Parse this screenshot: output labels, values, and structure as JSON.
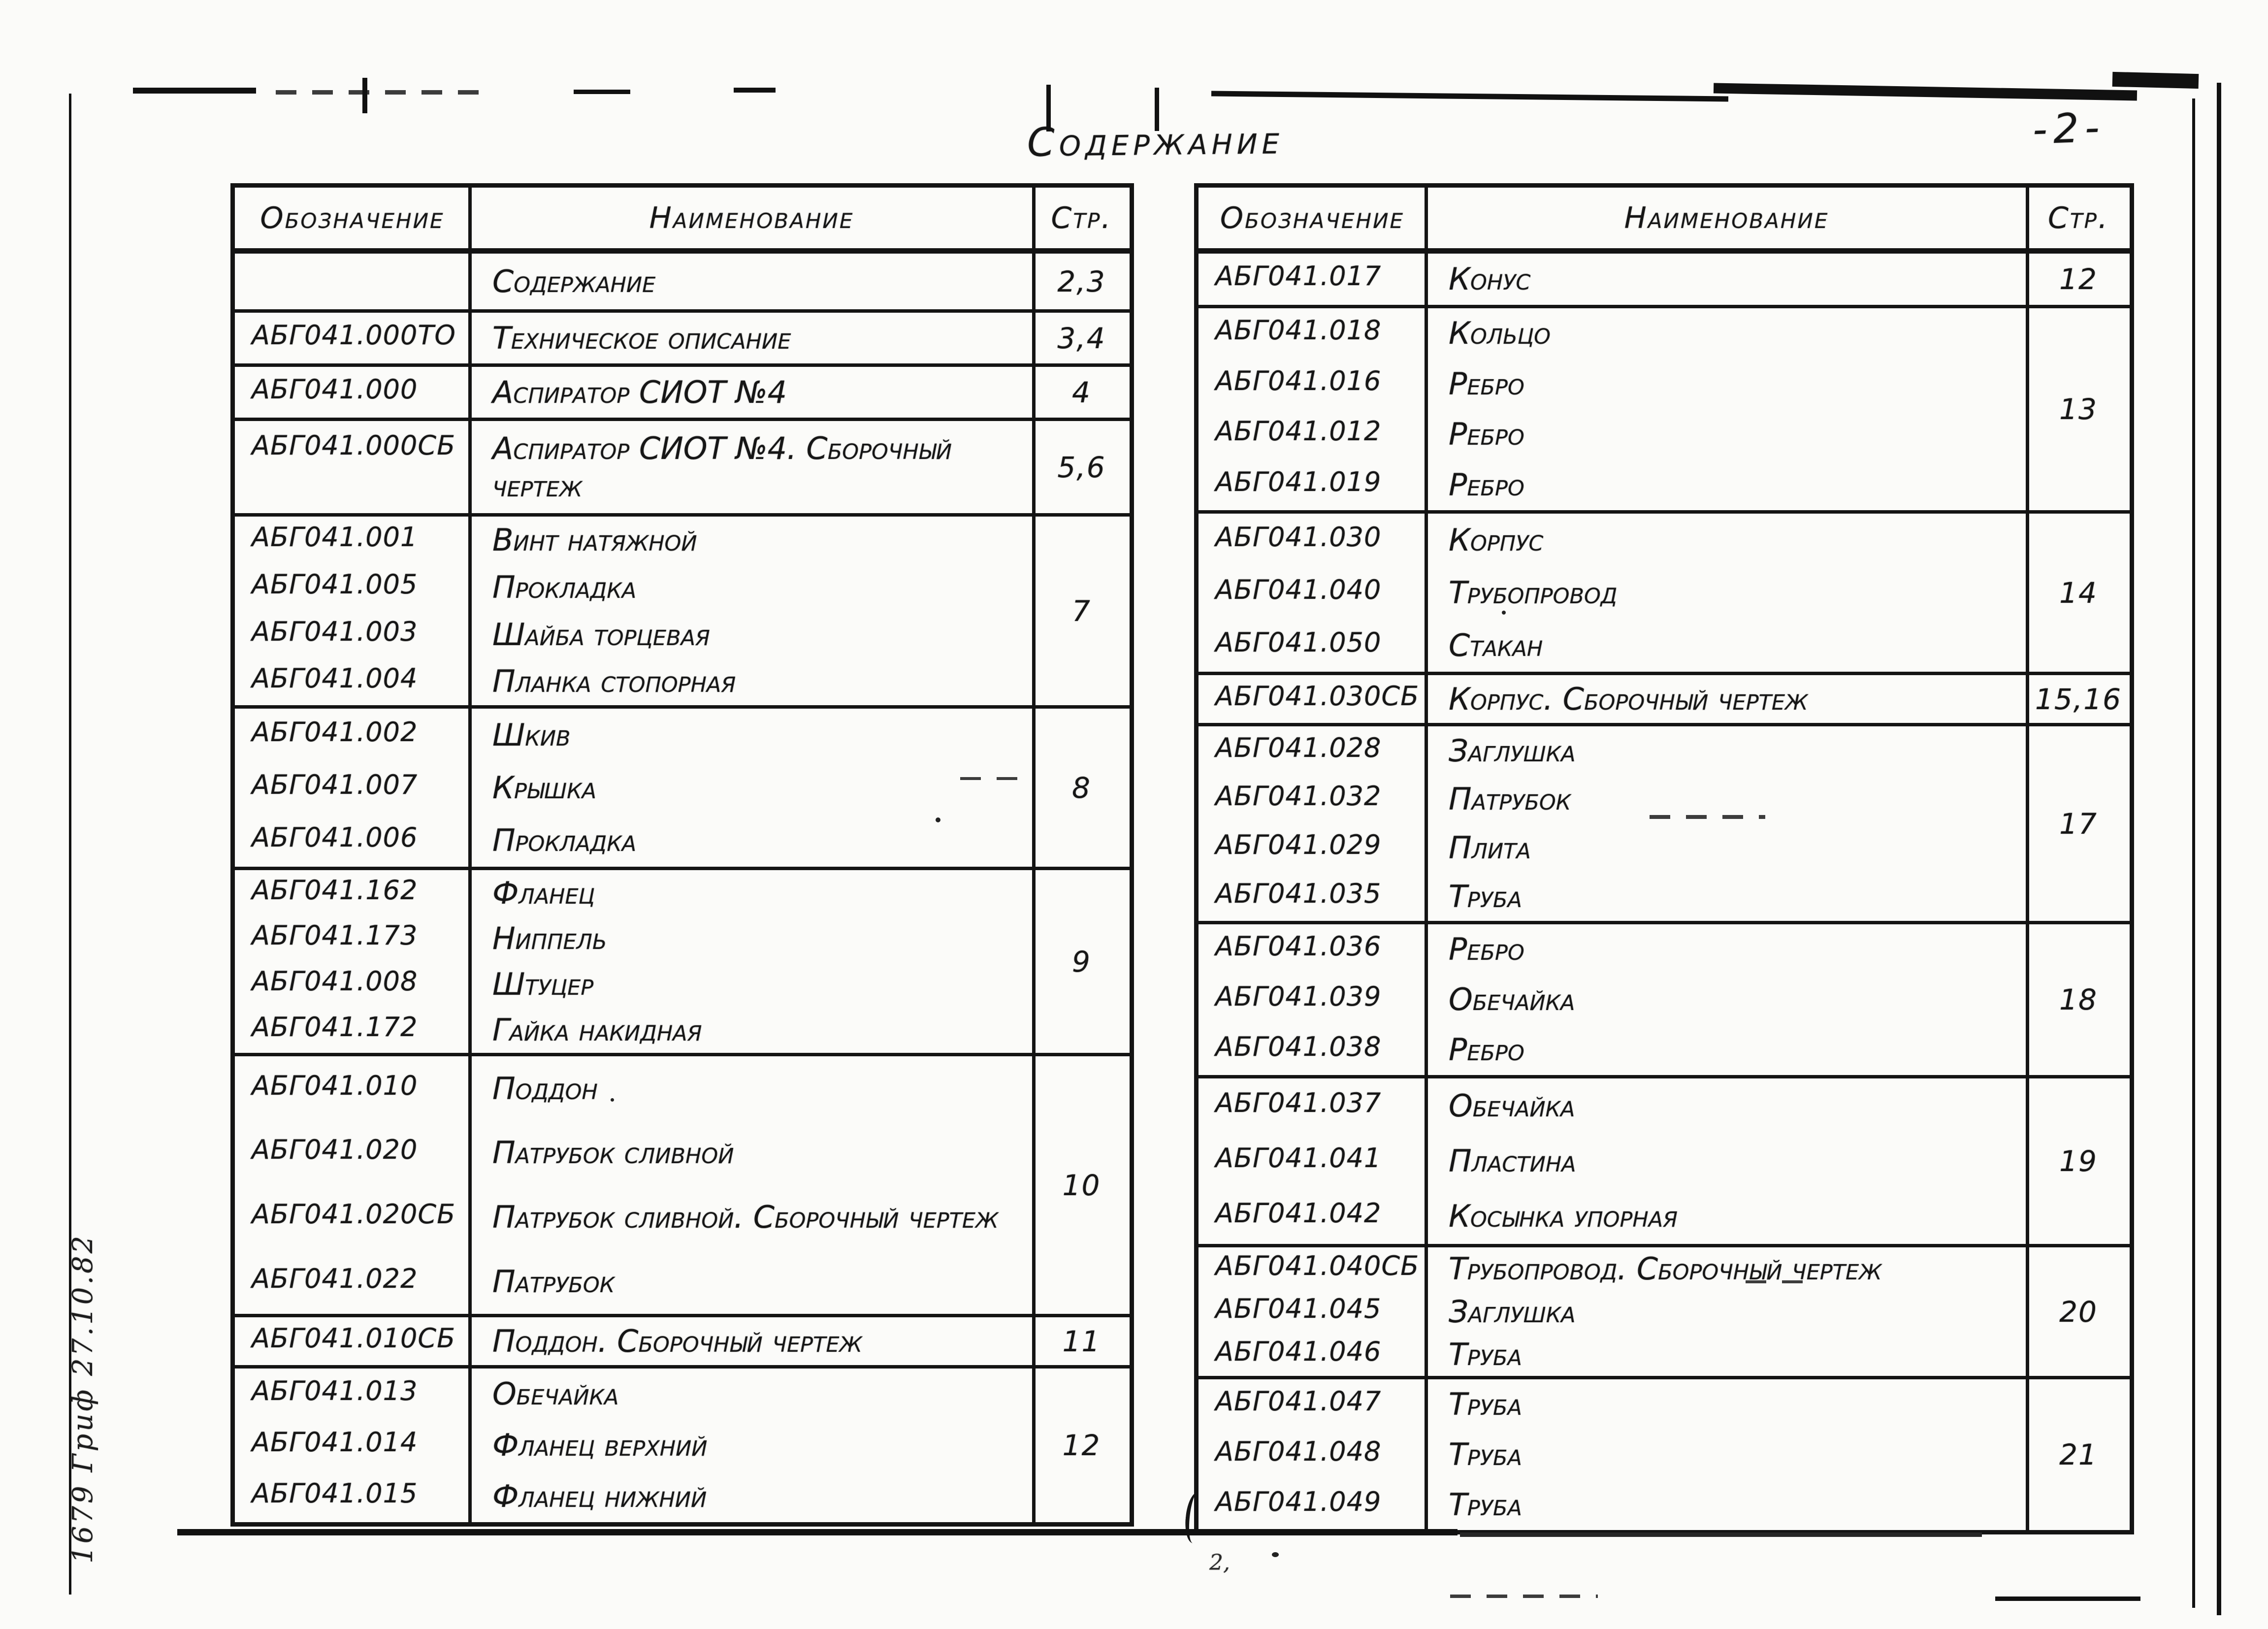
{
  "page": {
    "title": "Содержание",
    "page_number": "-2-",
    "margin_note": "1679 Гриф 27.10.82",
    "corner_mark": "2,",
    "colors": {
      "ink": "#161616",
      "paper": "#fbfbf9"
    }
  },
  "table_headers": {
    "designation": "Обозначение",
    "name": "Наименование",
    "page": "Стр."
  },
  "left_table": {
    "rows": [
      {
        "items": [
          {
            "designation": "",
            "name": "Содержание"
          }
        ],
        "page": "2,3"
      },
      {
        "items": [
          {
            "designation": "АБГ041.000ТО",
            "name": "Техническое описание"
          }
        ],
        "page": "3,4"
      },
      {
        "items": [
          {
            "designation": "АБГ041.000",
            "name": "Аспиратор СИОТ №4"
          }
        ],
        "page": "4"
      },
      {
        "items": [
          {
            "designation": "АБГ041.000СБ",
            "name": "Аспиратор СИОТ №4. Сборочный чертеж"
          }
        ],
        "page": "5,6"
      },
      {
        "items": [
          {
            "designation": "АБГ041.001",
            "name": "Винт натяжной"
          },
          {
            "designation": "АБГ041.005",
            "name": "Прокладка"
          },
          {
            "designation": "АБГ041.003",
            "name": "Шайба торцевая"
          },
          {
            "designation": "АБГ041.004",
            "name": "Планка стопорная"
          }
        ],
        "page": "7"
      },
      {
        "items": [
          {
            "designation": "АБГ041.002",
            "name": "Шкив"
          },
          {
            "designation": "АБГ041.007",
            "name": "Крышка"
          },
          {
            "designation": "АБГ041.006",
            "name": "Прокладка"
          }
        ],
        "page": "8"
      },
      {
        "items": [
          {
            "designation": "АБГ041.162",
            "name": "Фланец"
          },
          {
            "designation": "АБГ041.173",
            "name": "Ниппель"
          },
          {
            "designation": "АБГ041.008",
            "name": "Штуцер"
          },
          {
            "designation": "АБГ041.172",
            "name": "Гайка накидная"
          }
        ],
        "page": "9"
      },
      {
        "items": [
          {
            "designation": "АБГ041.010",
            "name": "Поддон"
          },
          {
            "designation": "АБГ041.020",
            "name": "Патрубок сливной"
          },
          {
            "designation": "АБГ041.020СБ",
            "name": "Патрубок сливной. Сборочный чертеж"
          },
          {
            "designation": "АБГ041.022",
            "name": "Патрубок"
          }
        ],
        "page": "10"
      },
      {
        "items": [
          {
            "designation": "АБГ041.010СБ",
            "name": "Поддон. Сборочный чертеж"
          }
        ],
        "page": "11"
      },
      {
        "items": [
          {
            "designation": "АБГ041.013",
            "name": "Обечайка"
          },
          {
            "designation": "АБГ041.014",
            "name": "Фланец верхний"
          },
          {
            "designation": "АБГ041.015",
            "name": "Фланец нижний"
          }
        ],
        "page": "12"
      }
    ]
  },
  "right_table": {
    "rows": [
      {
        "items": [
          {
            "designation": "АБГ041.017",
            "name": "Конус"
          }
        ],
        "page": "12"
      },
      {
        "items": [
          {
            "designation": "АБГ041.018",
            "name": "Кольцо"
          },
          {
            "designation": "АБГ041.016",
            "name": "Ребро"
          },
          {
            "designation": "АБГ041.012",
            "name": "Ребро"
          },
          {
            "designation": "АБГ041.019",
            "name": "Ребро"
          }
        ],
        "page": "13"
      },
      {
        "items": [
          {
            "designation": "АБГ041.030",
            "name": "Корпус"
          },
          {
            "designation": "АБГ041.040",
            "name": "Трубопровод"
          },
          {
            "designation": "АБГ041.050",
            "name": "Стакан"
          }
        ],
        "page": "14"
      },
      {
        "items": [
          {
            "designation": "АБГ041.030СБ",
            "name": "Корпус. Сборочный чертеж"
          }
        ],
        "page": "15,16"
      },
      {
        "items": [
          {
            "designation": "АБГ041.028",
            "name": "Заглушка"
          },
          {
            "designation": "АБГ041.032",
            "name": "Патрубок"
          },
          {
            "designation": "АБГ041.029",
            "name": "Плита"
          },
          {
            "designation": "АБГ041.035",
            "name": "Труба"
          }
        ],
        "page": "17"
      },
      {
        "items": [
          {
            "designation": "АБГ041.036",
            "name": "Ребро"
          },
          {
            "designation": "АБГ041.039",
            "name": "Обечайка"
          },
          {
            "designation": "АБГ041.038",
            "name": "Ребро"
          }
        ],
        "page": "18"
      },
      {
        "items": [
          {
            "designation": "АБГ041.037",
            "name": "Обечайка"
          },
          {
            "designation": "АБГ041.041",
            "name": "Пластина"
          },
          {
            "designation": "АБГ041.042",
            "name": "Косынка упорная"
          }
        ],
        "page": "19"
      },
      {
        "items": [
          {
            "designation": "АБГ041.040СБ",
            "name": "Трубопровод. Сборочный чертеж"
          },
          {
            "designation": "АБГ041.045",
            "name": "Заглушка"
          },
          {
            "designation": "АБГ041.046",
            "name": "Труба"
          }
        ],
        "page": "20"
      },
      {
        "items": [
          {
            "designation": "АБГ041.047",
            "name": "Труба"
          },
          {
            "designation": "АБГ041.048",
            "name": "Труба"
          },
          {
            "designation": "АБГ041.049",
            "name": "Труба"
          }
        ],
        "page": "21"
      }
    ]
  }
}
